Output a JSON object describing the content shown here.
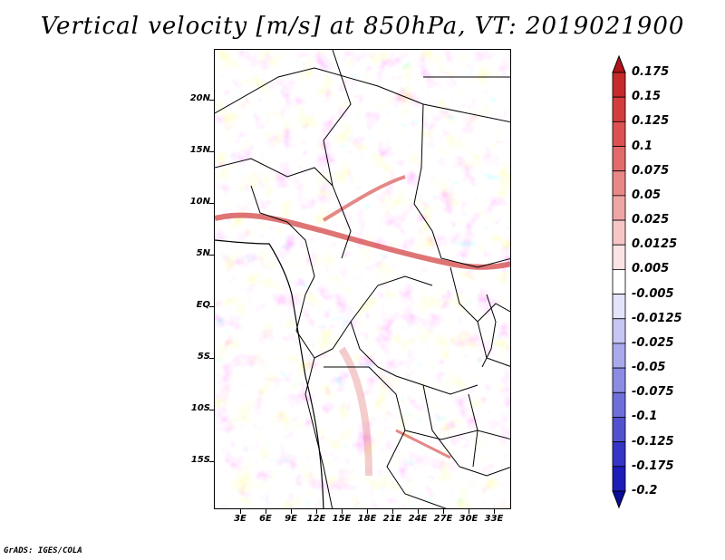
{
  "title": "Vertical velocity [m/s] at 850hPa, VT: 2019021900",
  "credit": "GrADS: IGES/COLA",
  "map": {
    "lat_labels": [
      "20N",
      "15N",
      "10N",
      "5N",
      "EQ",
      "5S",
      "10S",
      "15S"
    ],
    "lon_labels": [
      "3E",
      "6E",
      "9E",
      "12E",
      "15E",
      "18E",
      "21E",
      "24E",
      "27E",
      "30E",
      "33E"
    ]
  },
  "colorbar": {
    "labels": [
      "0.175",
      "0.15",
      "0.125",
      "0.1",
      "0.075",
      "0.05",
      "0.025",
      "0.0125",
      "0.005",
      "-0.005",
      "-0.0125",
      "-0.025",
      "-0.05",
      "-0.075",
      "-0.1",
      "-0.125",
      "-0.175",
      "-0.2"
    ],
    "colors": [
      "#b0151b",
      "#c62a2a",
      "#d33d3d",
      "#dc5252",
      "#e26a6a",
      "#e98787",
      "#f0a5a5",
      "#f6c6c6",
      "#fbe3e3",
      "#ffffff",
      "#e3e3fb",
      "#c6c6f4",
      "#a9a9ec",
      "#8c8ce4",
      "#6f6fdb",
      "#5252d1",
      "#3535c6",
      "#1c1cb8",
      "#0b0b9a"
    ]
  }
}
